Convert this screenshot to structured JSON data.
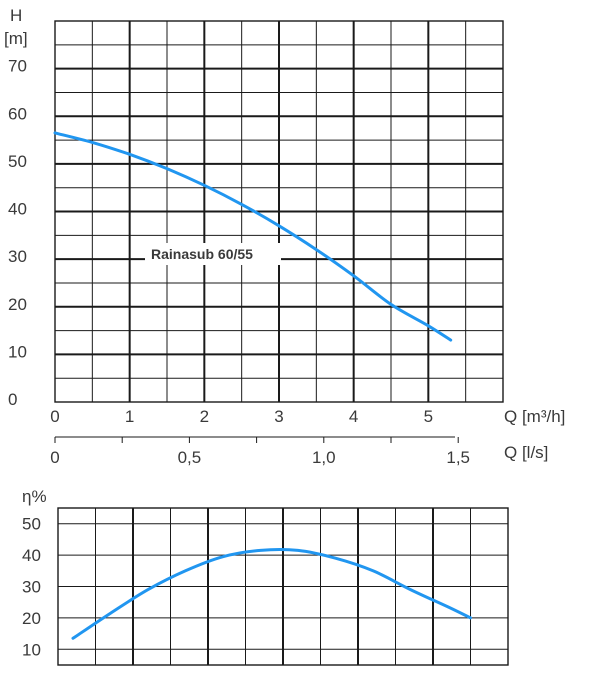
{
  "colors": {
    "curve": "#2196f0",
    "grid": "#1a1a1a",
    "text": "#3a3a3a",
    "background": "#ffffff"
  },
  "chart_data": [
    {
      "type": "line",
      "ylabel": "H",
      "yunit": "[m]",
      "xlabel": "Q [m³/h]",
      "xlabel2": "Q [l/s]",
      "xlim": [
        0,
        6
      ],
      "ylim": [
        0,
        80
      ],
      "xticks": [
        0,
        1,
        2,
        3,
        4,
        5
      ],
      "xtick_labels": [
        "0",
        "1",
        "2",
        "3",
        "4",
        "5"
      ],
      "x2ticks": [
        0,
        0.5,
        1.0,
        1.5
      ],
      "x2tick_labels": [
        "0",
        "0,5",
        "1,0",
        "1,5"
      ],
      "yticks": [
        0,
        10,
        20,
        30,
        40,
        50,
        60,
        70
      ],
      "ytick_labels": [
        "0",
        "10",
        "20",
        "30",
        "40",
        "50",
        "60",
        "70"
      ],
      "grid": true,
      "series": [
        {
          "name": "Rainasub 60/55",
          "x": [
            0,
            0.5,
            1.0,
            1.5,
            2.0,
            2.5,
            3.0,
            3.5,
            4.0,
            4.5,
            5.0,
            5.3
          ],
          "y": [
            56.5,
            54.5,
            52,
            49,
            45.5,
            41.5,
            37,
            32,
            26.5,
            20.5,
            16,
            13
          ]
        }
      ]
    },
    {
      "type": "line",
      "ylabel": "η%",
      "xlim": [
        0,
        6
      ],
      "ylim": [
        5,
        55
      ],
      "yticks": [
        10,
        20,
        30,
        40,
        50
      ],
      "ytick_labels": [
        "10",
        "20",
        "30",
        "40",
        "50"
      ],
      "grid": true,
      "series": [
        {
          "name": "",
          "x": [
            0.2,
            0.7,
            1.2,
            1.7,
            2.2,
            2.7,
            3.2,
            3.7,
            4.2,
            4.7,
            5.2,
            5.5
          ],
          "y": [
            13.5,
            21.5,
            29,
            35,
            39.5,
            41.5,
            41.5,
            39,
            35,
            29,
            23.5,
            20
          ]
        }
      ]
    }
  ]
}
